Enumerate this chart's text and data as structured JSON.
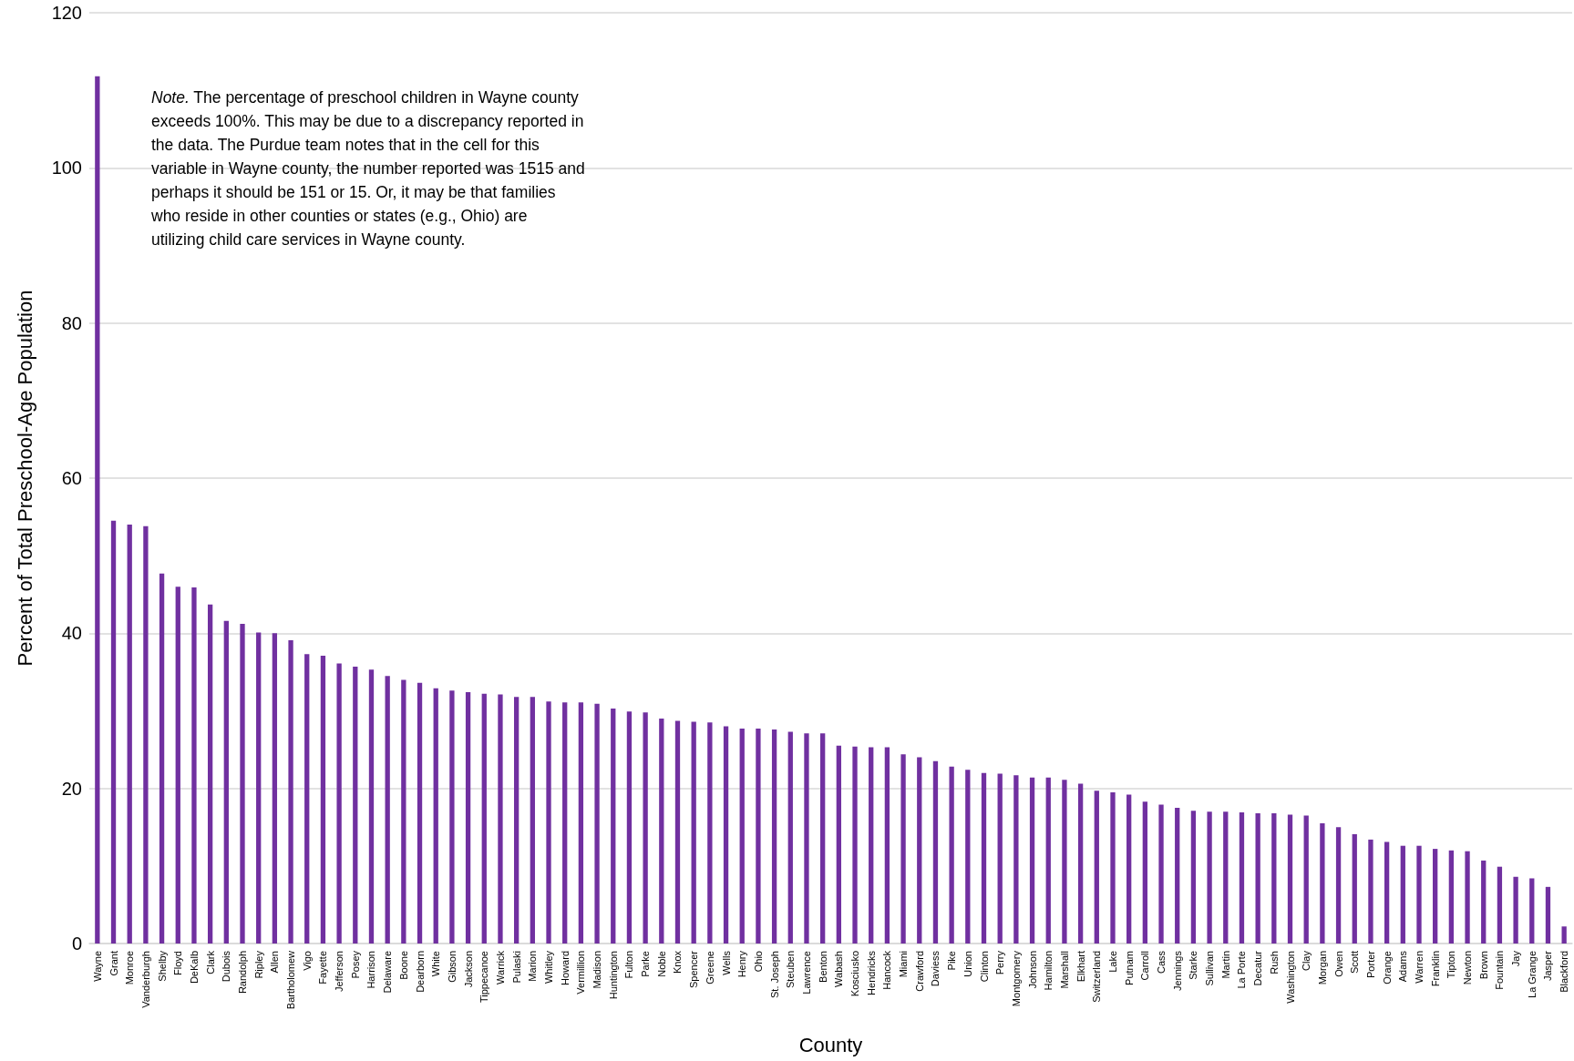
{
  "chart_data": {
    "type": "bar",
    "xlabel": "County",
    "ylabel": "Percent of Total Preschool-Age Population",
    "categories": [
      "Wayne",
      "Grant",
      "Monroe",
      "Vanderburgh",
      "Shelby",
      "Floyd",
      "DeKalb",
      "Clark",
      "Dubois",
      "Randolph",
      "Ripley",
      "Allen",
      "Bartholomew",
      "Vigo",
      "Fayette",
      "Jefferson",
      "Posey",
      "Harrison",
      "Delaware",
      "Boone",
      "Dearborn",
      "White",
      "Gibson",
      "Jackson",
      "Tippecanoe",
      "Warrick",
      "Pulaski",
      "Marion",
      "Whitley",
      "Howard",
      "Vermillion",
      "Madison",
      "Huntington",
      "Fulton",
      "Parke",
      "Noble",
      "Knox",
      "Spencer",
      "Greene",
      "Wells",
      "Henry",
      "Ohio",
      "St. Joseph",
      "Steuben",
      "Lawrence",
      "Benton",
      "Wabash",
      "Kosciusko",
      "Hendricks",
      "Hancock",
      "Miami",
      "Crawford",
      "Daviess",
      "Pike",
      "Union",
      "Clinton",
      "Perry",
      "Montgomery",
      "Johnson",
      "Hamilton",
      "Marshall",
      "Elkhart",
      "Switzerland",
      "Lake",
      "Putnam",
      "Carroll",
      "Cass",
      "Jennings",
      "Starke",
      "Sullivan",
      "Martin",
      "La Porte",
      "Decatur",
      "Rush",
      "Washington",
      "Clay",
      "Morgan",
      "Owen",
      "Scott",
      "Porter",
      "Orange",
      "Adams",
      "Warren",
      "Franklin",
      "Tipton",
      "Newton",
      "Brown",
      "Fountain",
      "Jay",
      "La Grange",
      "Jasper",
      "Blackford"
    ],
    "values": [
      111.8,
      54.5,
      54.0,
      53.8,
      47.7,
      46.0,
      45.9,
      43.7,
      41.6,
      41.2,
      40.1,
      40.0,
      39.1,
      37.3,
      37.1,
      36.1,
      35.7,
      35.3,
      34.5,
      34.0,
      33.6,
      32.9,
      32.6,
      32.4,
      32.2,
      32.1,
      31.8,
      31.8,
      31.2,
      31.1,
      31.1,
      30.9,
      30.3,
      29.9,
      29.8,
      29.0,
      28.7,
      28.6,
      28.5,
      28.0,
      27.7,
      27.7,
      27.6,
      27.3,
      27.1,
      27.1,
      25.5,
      25.4,
      25.3,
      25.3,
      24.4,
      24.0,
      23.5,
      22.8,
      22.4,
      22.0,
      21.9,
      21.7,
      21.4,
      21.4,
      21.1,
      20.6,
      19.7,
      19.5,
      19.2,
      18.3,
      17.9,
      17.5,
      17.1,
      17.0,
      17.0,
      16.9,
      16.8,
      16.8,
      16.6,
      16.5,
      15.5,
      15.0,
      14.1,
      13.4,
      13.1,
      12.6,
      12.6,
      12.2,
      12.0,
      11.9,
      10.7,
      9.9,
      8.6,
      8.4,
      7.3,
      2.2
    ],
    "color": "#7030a0",
    "ylim": [
      0,
      120
    ],
    "yticks": [
      0,
      20,
      40,
      60,
      80,
      100,
      120
    ],
    "grid": "y",
    "annotations": [
      "Note. The percentage of preschool children in Wayne county exceeds 100%. This may be due to a discrepancy reported in the data. The Purdue team notes that in the cell for this variable in Wayne county, the number reported was 1515 and perhaps it should be 151 or 15. Or, it may be that families who reside in other counties or states (e.g., Ohio) are utilizing child care services in Wayne county."
    ]
  }
}
